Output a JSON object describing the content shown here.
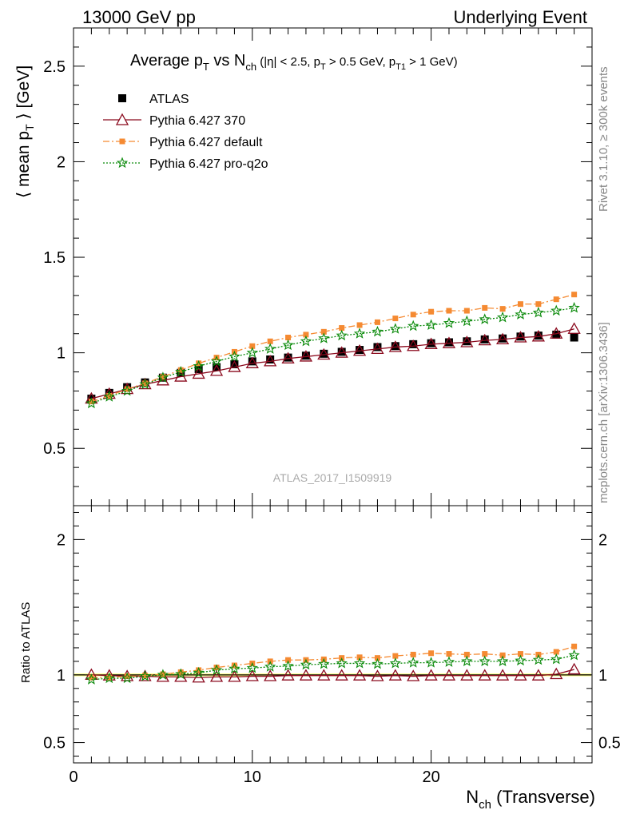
{
  "header": {
    "left": "13000 GeV pp",
    "right": "Underlying Event"
  },
  "side_text": {
    "rivet": "Rivet 3.1.10, ≥ 300k events",
    "mcplots": "mcplots.cern.ch [arXiv:1306.3436]"
  },
  "watermark": "ATLAS_2017_I1509919",
  "colors": {
    "atlas": "#000000",
    "p370": "#8b0a1e",
    "default": "#f58a32",
    "proq2o": "#0a8a0a",
    "band": "#ffff80",
    "axis": "#000000"
  },
  "chart_data": [
    {
      "type": "scatter",
      "title": "Average p_T vs N_ch (|η| < 2.5, p_T > 0.5 GeV, p_T1 > 1 GeV)",
      "title_parts": {
        "a": "Average p",
        "a_sub": "T",
        "b": " vs N",
        "b_sub": "ch",
        "c": " (|η| < 2.5, p",
        "c_sub": "T",
        "d": " > 0.5 GeV, p",
        "d_sub": "T1",
        "e": " > 1 GeV)"
      },
      "ylabel": "⟨ mean p_T ⟩ [GeV]",
      "ylabel_parts": {
        "pre": "⟨ mean p",
        "sub": "T",
        "post": " ⟩ [GeV]"
      },
      "xlim": [
        0,
        29
      ],
      "ylim": [
        0.2,
        2.7
      ],
      "yticks": [
        0.5,
        1,
        1.5,
        2,
        2.5
      ],
      "ytick_labels": [
        "0.5",
        "1",
        "1.5",
        "2",
        "2.5"
      ],
      "legend_position": "top-left",
      "x": [
        1,
        2,
        3,
        4,
        5,
        6,
        7,
        8,
        9,
        10,
        11,
        12,
        13,
        14,
        15,
        16,
        17,
        18,
        19,
        20,
        21,
        22,
        23,
        24,
        25,
        26,
        27,
        28
      ],
      "series": [
        {
          "name": "ATLAS",
          "key": "atlas",
          "marker": "square",
          "values": [
            0.76,
            0.79,
            0.82,
            0.845,
            0.87,
            0.895,
            0.915,
            0.925,
            0.94,
            0.955,
            0.965,
            0.975,
            0.985,
            0.995,
            1.005,
            1.015,
            1.03,
            1.035,
            1.045,
            1.05,
            1.055,
            1.06,
            1.07,
            1.075,
            1.085,
            1.09,
            1.095,
            1.08
          ]
        },
        {
          "name": "Pythia 6.427 370",
          "key": "p370",
          "marker": "triangle",
          "values": [
            0.76,
            0.785,
            0.81,
            0.835,
            0.855,
            0.875,
            0.89,
            0.905,
            0.925,
            0.945,
            0.955,
            0.97,
            0.98,
            0.99,
            1.0,
            1.01,
            1.02,
            1.03,
            1.035,
            1.045,
            1.05,
            1.055,
            1.065,
            1.07,
            1.08,
            1.085,
            1.1,
            1.125
          ]
        },
        {
          "name": "Pythia 6.427 default",
          "key": "default",
          "marker": "small-square",
          "values": [
            0.745,
            0.775,
            0.81,
            0.84,
            0.875,
            0.91,
            0.945,
            0.975,
            1.005,
            1.035,
            1.06,
            1.08,
            1.095,
            1.11,
            1.13,
            1.145,
            1.16,
            1.18,
            1.2,
            1.215,
            1.22,
            1.22,
            1.235,
            1.23,
            1.255,
            1.255,
            1.28,
            1.305
          ]
        },
        {
          "name": "Pythia 6.427 pro-q2o",
          "key": "proq2o",
          "marker": "star",
          "values": [
            0.735,
            0.77,
            0.8,
            0.835,
            0.87,
            0.9,
            0.93,
            0.955,
            0.98,
            1.0,
            1.02,
            1.04,
            1.06,
            1.075,
            1.09,
            1.1,
            1.11,
            1.125,
            1.14,
            1.145,
            1.155,
            1.165,
            1.175,
            1.185,
            1.2,
            1.21,
            1.22,
            1.235
          ]
        }
      ]
    },
    {
      "type": "scatter",
      "title": "",
      "ylabel": "Ratio to ATLAS",
      "xlabel": "N_ch (Transverse)",
      "xlabel_parts": {
        "pre": "N",
        "sub": "ch",
        "post": " (Transverse)"
      },
      "xlim": [
        0,
        29
      ],
      "xticks": [
        0,
        10,
        20
      ],
      "xtick_labels": [
        "0",
        "10",
        "20"
      ],
      "ylim": [
        0.35,
        2.25
      ],
      "yticks": [
        0.5,
        1,
        2
      ],
      "ytick_labels": [
        "0.5",
        "1",
        "2"
      ],
      "x": [
        1,
        2,
        3,
        4,
        5,
        6,
        7,
        8,
        9,
        10,
        11,
        12,
        13,
        14,
        15,
        16,
        17,
        18,
        19,
        20,
        21,
        22,
        23,
        24,
        25,
        26,
        27,
        28
      ],
      "series": [
        {
          "key": "p370",
          "marker": "triangle",
          "values": [
            1.0,
            0.995,
            0.99,
            0.99,
            0.985,
            0.985,
            0.98,
            0.985,
            0.985,
            0.99,
            0.99,
            0.995,
            0.995,
            0.995,
            0.995,
            0.995,
            0.99,
            0.995,
            0.99,
            0.995,
            0.995,
            0.995,
            0.995,
            0.995,
            0.995,
            0.995,
            1.005,
            1.04
          ]
        },
        {
          "key": "default",
          "marker": "small-square",
          "values": [
            0.98,
            0.98,
            0.99,
            0.995,
            1.005,
            1.02,
            1.035,
            1.055,
            1.07,
            1.085,
            1.1,
            1.11,
            1.11,
            1.115,
            1.125,
            1.13,
            1.125,
            1.14,
            1.15,
            1.16,
            1.155,
            1.15,
            1.155,
            1.145,
            1.155,
            1.15,
            1.17,
            1.21
          ]
        },
        {
          "key": "proq2o",
          "marker": "star",
          "values": [
            0.965,
            0.975,
            0.975,
            0.99,
            1.0,
            1.005,
            1.015,
            1.035,
            1.045,
            1.05,
            1.06,
            1.065,
            1.075,
            1.08,
            1.085,
            1.085,
            1.08,
            1.085,
            1.09,
            1.09,
            1.095,
            1.1,
            1.1,
            1.1,
            1.105,
            1.11,
            1.115,
            1.145
          ]
        }
      ]
    }
  ]
}
